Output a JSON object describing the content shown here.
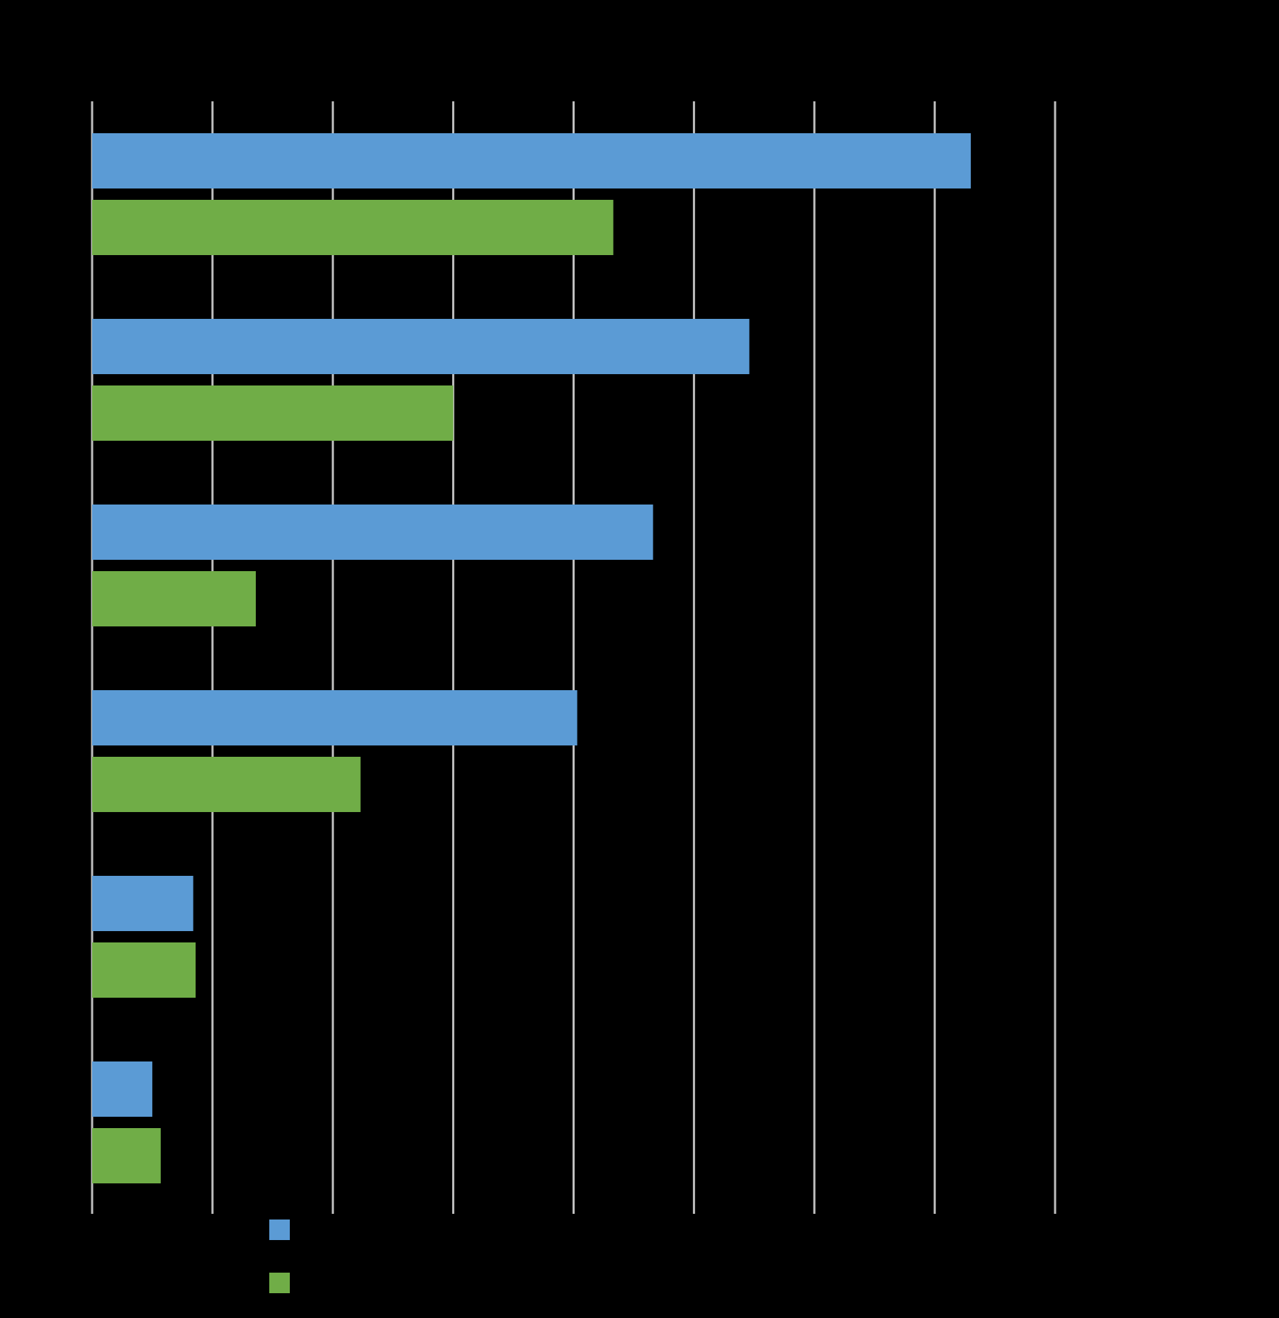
{
  "chart_data": {
    "type": "bar",
    "orientation": "horizontal",
    "title": "",
    "xlabel": "",
    "ylabel": "",
    "categories": [
      "",
      "",
      "",
      "",
      "",
      ""
    ],
    "series": [
      {
        "color": "#5b9bd5",
        "values": [
          7.3,
          5.46,
          4.66,
          4.03,
          0.84,
          0.5
        ]
      },
      {
        "color": "#70ad47",
        "values": [
          4.33,
          3.0,
          1.36,
          2.23,
          0.86,
          0.57
        ]
      }
    ],
    "xlim": [
      0,
      8
    ],
    "grid": true,
    "legend_position": "bottom-left",
    "background": "#000000",
    "gridline_color": "#bfbfbf"
  }
}
